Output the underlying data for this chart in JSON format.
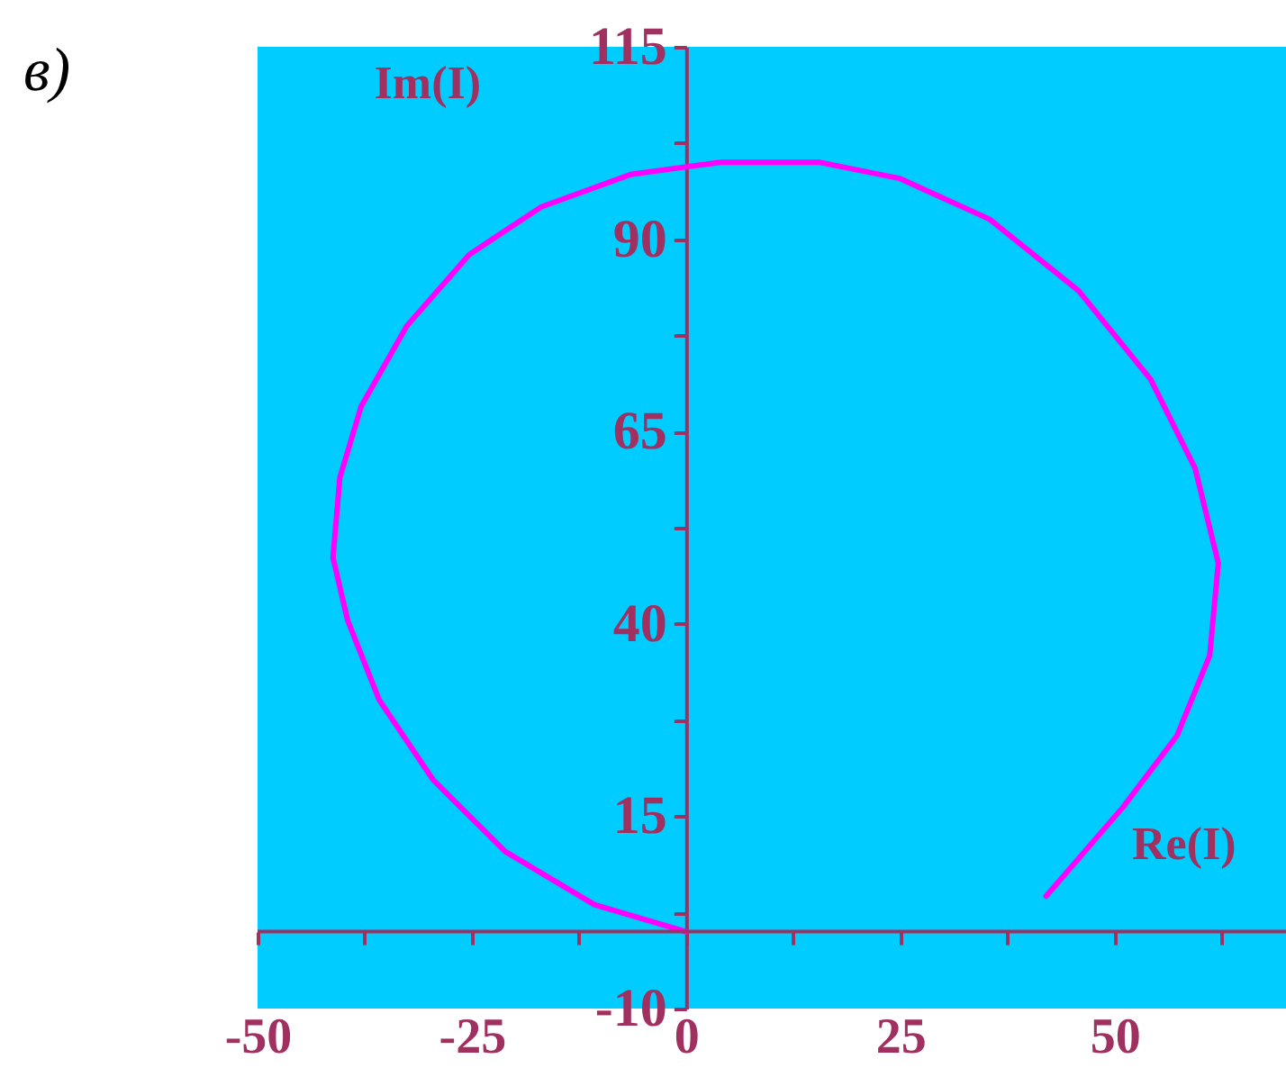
{
  "chart_data": {
    "type": "line",
    "title": "в)",
    "xlabel": "Re(I)",
    "ylabel": "Im(I)",
    "x": [
      0,
      -10.7,
      -21.1,
      -29.5,
      -35.8,
      -39.5,
      -41.2,
      -40.4,
      -37.9,
      -32.6,
      -25.3,
      -16.9,
      -6.5,
      4,
      15.5,
      24.9,
      35.4,
      45.8,
      54.2,
      59.4,
      62.1,
      61.1,
      57.3,
      51,
      42
    ],
    "series": [
      {
        "color": "#ff00ff",
        "values": [
          0,
          3.5,
          10.4,
          19.7,
          30.1,
          40.5,
          48.6,
          59,
          68.3,
          78.7,
          88,
          94.2,
          98.4,
          100,
          100,
          97.9,
          92.6,
          83.3,
          71.8,
          60.2,
          47.9,
          35.9,
          25.5,
          16.2,
          4.6
        ]
      }
    ],
    "xlim": [
      -50,
      70
    ],
    "ylim": [
      -10,
      115
    ],
    "xticks": [
      -50,
      {
        "value": -37.5,
        "label": null
      },
      -25,
      {
        "value": -12.5,
        "label": null
      },
      0,
      {
        "value": 12.5,
        "label": null
      },
      25,
      {
        "value": 37.5,
        "label": null
      },
      50,
      {
        "value": 62.5,
        "label": null
      }
    ],
    "yticks": [
      -10,
      {
        "value": 2.5,
        "label": null
      },
      15,
      {
        "value": 27.5,
        "label": null
      },
      40,
      {
        "value": 52.5,
        "label": null
      },
      65,
      {
        "value": 77.5,
        "label": null
      },
      90,
      {
        "value": 102.5,
        "label": null
      },
      115
    ],
    "ref_lines": [
      {
        "axis": "y",
        "value": 0,
        "color": "#a0305f"
      }
    ],
    "grid": false,
    "legend": false,
    "marker": "none",
    "line_style": "solid"
  }
}
